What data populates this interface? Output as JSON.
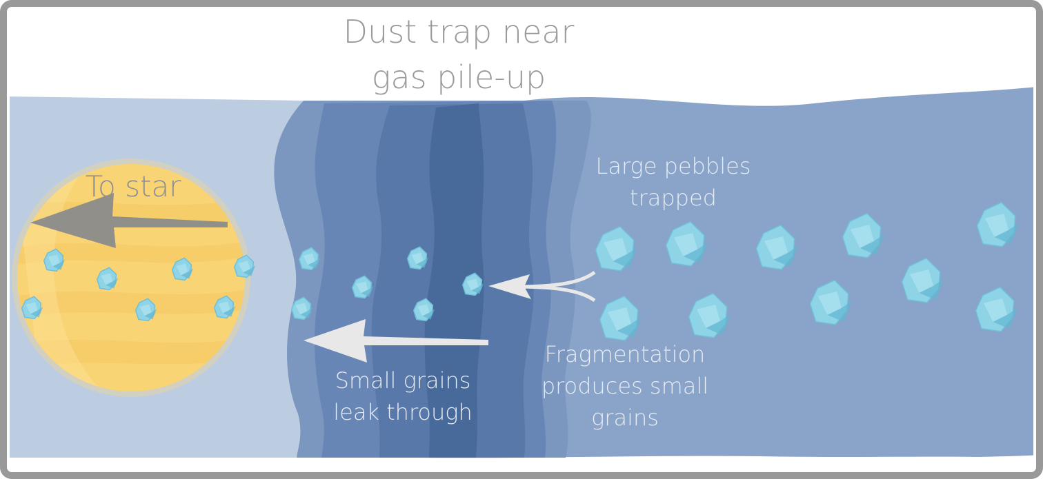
{
  "title": {
    "line1": "Dust trap near",
    "line2": "gas pile-up"
  },
  "labels": {
    "to_star": "To star",
    "large_pebbles": {
      "line1": "Large pebbles",
      "line2": "trapped"
    },
    "small_grains": {
      "line1": "Small grains",
      "line2": "leak through"
    },
    "fragmentation": {
      "line1": "Fragmentation",
      "line2": "produces small",
      "line3": "grains"
    }
  },
  "colors": {
    "frame": "#999999",
    "title_text": "#9a9a9a",
    "label_text": "#e6ecf4",
    "star_label_text": "#8f8f8f",
    "inner_disk": "#bccde2",
    "outer_disk": "#8aa3c8",
    "trap_band_1": "#7b97c0",
    "trap_band_2": "#6886b5",
    "trap_band_3": "#5878a9",
    "trap_band_4": "#486a9a",
    "star_fill": "#f9d474",
    "star_rim": "#d9d0b4",
    "grain": "#8fd3e6",
    "arrow_white": "#e8e8e8",
    "arrow_gray": "#8b8b8b"
  }
}
